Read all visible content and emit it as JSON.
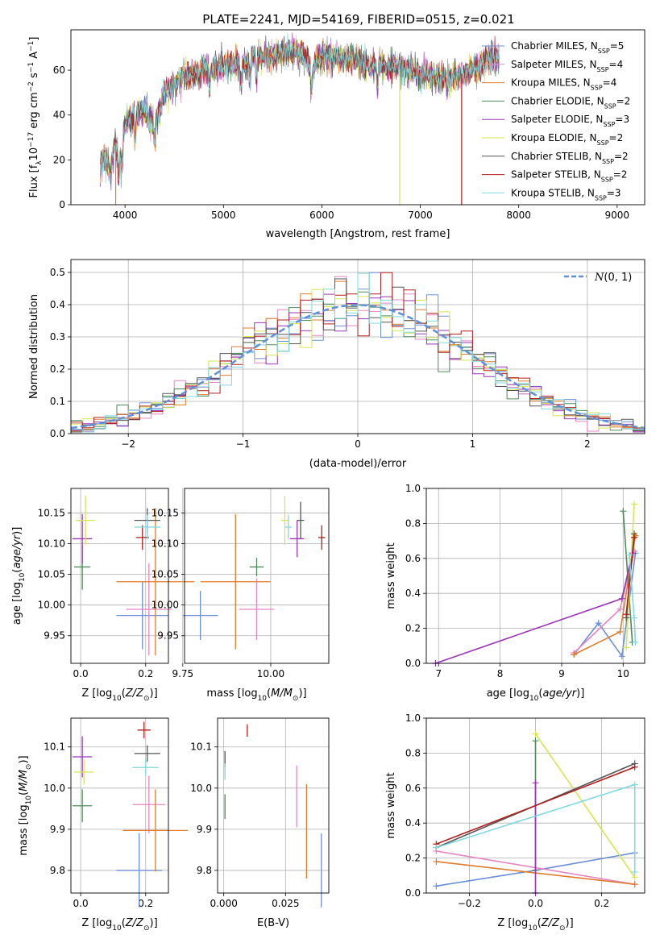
{
  "title": "PLATE=2241, MJD=54169, FIBERID=0515, z=0.021",
  "series_styles": [
    {
      "name": "Chabrier MILES",
      "color": "#6b8fd6"
    },
    {
      "name": "Salpeter MILES",
      "color": "#e585c2"
    },
    {
      "name": "Kroupa MILES",
      "color": "#e07b2c"
    },
    {
      "name": "Chabrier ELODIE",
      "color": "#4e8a5a"
    },
    {
      "name": "Salpeter ELODIE",
      "color": "#9a35b6"
    },
    {
      "name": "Kroupa ELODIE",
      "color": "#d6e552"
    },
    {
      "name": "Chabrier STELIB",
      "color": "#555555"
    },
    {
      "name": "Salpeter STELIB",
      "color": "#b11e1e"
    },
    {
      "name": "Kroupa STELIB",
      "color": "#7fd8de"
    }
  ],
  "chart_data": [
    {
      "id": "spectrum",
      "type": "line",
      "xlabel": "wavelength [Angstrom, rest frame]",
      "ylabel": "Flux [f_λ 10^-17 erg cm^-2 s^-1 A^-1]",
      "xlim": [
        3450,
        9280
      ],
      "ylim": [
        0,
        78
      ],
      "xticks": [
        4000,
        5000,
        6000,
        7000,
        8000,
        9000
      ],
      "yticks": [
        0,
        20,
        40,
        60
      ],
      "legend_position": "top-right",
      "legend": [
        {
          "label": "Chabrier MILES, N",
          "sub": "SSP",
          "val": "=5"
        },
        {
          "label": "Salpeter MILES, N",
          "sub": "SSP",
          "val": "=4"
        },
        {
          "label": "Kroupa MILES, N",
          "sub": "SSP",
          "val": "=4"
        },
        {
          "label": "Chabrier ELODIE, N",
          "sub": "SSP",
          "val": "=2"
        },
        {
          "label": "Salpeter ELODIE, N",
          "sub": "SSP",
          "val": "=3"
        },
        {
          "label": "Kroupa ELODIE, N",
          "sub": "SSP",
          "val": "=2"
        },
        {
          "label": "Chabrier STELIB, N",
          "sub": "SSP",
          "val": "=2"
        },
        {
          "label": "Salpeter STELIB, N",
          "sub": "SSP",
          "val": "=2"
        },
        {
          "label": "Kroupa STELIB, N",
          "sub": "SSP",
          "val": "=3"
        }
      ],
      "continuum": [
        [
          3750,
          18
        ],
        [
          3800,
          22
        ],
        [
          3850,
          14
        ],
        [
          3900,
          28
        ],
        [
          3950,
          20
        ],
        [
          4000,
          36
        ],
        [
          4100,
          40
        ],
        [
          4200,
          42
        ],
        [
          4300,
          36
        ],
        [
          4400,
          50
        ],
        [
          4500,
          54
        ],
        [
          4600,
          58
        ],
        [
          4700,
          58
        ],
        [
          4800,
          60
        ],
        [
          4900,
          60
        ],
        [
          5000,
          62
        ],
        [
          5100,
          64
        ],
        [
          5200,
          62
        ],
        [
          5300,
          66
        ],
        [
          5400,
          66
        ],
        [
          5500,
          66
        ],
        [
          5600,
          68
        ],
        [
          5700,
          68
        ],
        [
          5800,
          68
        ],
        [
          5900,
          60
        ],
        [
          6000,
          67
        ],
        [
          6100,
          66
        ],
        [
          6200,
          66
        ],
        [
          6300,
          65
        ],
        [
          6400,
          64
        ],
        [
          6500,
          62
        ],
        [
          6600,
          62
        ],
        [
          6700,
          62
        ],
        [
          6800,
          60
        ],
        [
          6900,
          60
        ],
        [
          7000,
          58
        ],
        [
          7100,
          58
        ],
        [
          7200,
          56
        ],
        [
          7300,
          56
        ],
        [
          7400,
          58
        ],
        [
          7500,
          60
        ],
        [
          7600,
          62
        ],
        [
          7700,
          66
        ],
        [
          7800,
          66
        ]
      ],
      "dropouts": [
        {
          "x": 3905,
          "color": "#e07b2c"
        },
        {
          "x": 6790,
          "color": "#d6e552"
        },
        {
          "x": 7420,
          "color": "#b11e1e"
        }
      ]
    },
    {
      "id": "residuals",
      "type": "histogram",
      "xlabel": "(data-model)/error",
      "ylabel": "Normed distribution",
      "xlim": [
        -2.5,
        2.5
      ],
      "ylim": [
        0,
        0.54
      ],
      "xticks": [
        -2,
        -1,
        0,
        1,
        2
      ],
      "yticks": [
        0.0,
        0.1,
        0.2,
        0.3,
        0.4,
        0.5
      ],
      "bin_width": 0.1,
      "legend_position": "top-right",
      "legend": "N(0,1)",
      "gaussian_color": "#5f8fd6"
    },
    {
      "id": "age-vs-Z",
      "type": "scatter",
      "xlabel": "Z [log10(Z/Z⊙)]",
      "ylabel": "age  [log10(age/yr)]",
      "xlim": [
        -0.03,
        0.27
      ],
      "ylim": [
        9.905,
        10.19
      ],
      "xticks": [
        0.0,
        0.2
      ],
      "yticks": [
        9.95,
        10.0,
        10.05,
        10.1,
        10.15
      ],
      "points": [
        {
          "x": 0.19,
          "y": 9.983,
          "xerr": 0.08,
          "yerr": 0.055,
          "color": "#6b8fd6"
        },
        {
          "x": 0.21,
          "y": 9.993,
          "xerr": 0.07,
          "yerr": 0.075,
          "color": "#e585c2"
        },
        {
          "x": 0.23,
          "y": 10.038,
          "xerr": 0.12,
          "yerr": 0.12,
          "color": "#e07b2c"
        },
        {
          "x": 0.005,
          "y": 10.062,
          "xerr": 0.025,
          "yerr": 0.037,
          "color": "#4e8a5a"
        },
        {
          "x": 0.005,
          "y": 10.108,
          "xerr": 0.03,
          "yerr": 0.04,
          "color": "#9a35b6"
        },
        {
          "x": 0.015,
          "y": 10.138,
          "xerr": 0.03,
          "yerr": 0.04,
          "color": "#d6e552"
        },
        {
          "x": 0.205,
          "y": 10.138,
          "xerr": 0.04,
          "yerr": 0.02,
          "color": "#555555"
        },
        {
          "x": 0.19,
          "y": 10.11,
          "xerr": 0.02,
          "yerr": 0.02,
          "color": "#b11e1e"
        },
        {
          "x": 0.205,
          "y": 10.127,
          "xerr": 0.04,
          "yerr": 0.02,
          "color": "#7fd8de"
        }
      ]
    },
    {
      "id": "age-vs-mass",
      "type": "scatter",
      "xlabel": "mass [log10(M/M⊙)]",
      "ylabel": "",
      "xlim": [
        9.755,
        10.165
      ],
      "ylim": [
        9.905,
        10.19
      ],
      "xticks": [
        9.75,
        10.0
      ],
      "yticks": [
        9.95,
        10.0,
        10.05,
        10.1,
        10.15
      ],
      "points": [
        {
          "x": 9.8,
          "y": 9.983,
          "xerr": 0.05,
          "yerr": 0.04,
          "color": "#6b8fd6"
        },
        {
          "x": 9.96,
          "y": 9.993,
          "xerr": 0.05,
          "yerr": 0.05,
          "color": "#e585c2"
        },
        {
          "x": 9.9,
          "y": 10.038,
          "xerr": 0.1,
          "yerr": 0.11,
          "color": "#e07b2c"
        },
        {
          "x": 9.96,
          "y": 10.062,
          "xerr": 0.02,
          "yerr": 0.015,
          "color": "#4e8a5a"
        },
        {
          "x": 10.075,
          "y": 10.108,
          "xerr": 0.02,
          "yerr": 0.03,
          "color": "#9a35b6"
        },
        {
          "x": 10.04,
          "y": 10.138,
          "xerr": 0.01,
          "yerr": 0.04,
          "color": "#d6e552"
        },
        {
          "x": 10.085,
          "y": 10.138,
          "xerr": 0.01,
          "yerr": 0.03,
          "color": "#555555"
        },
        {
          "x": 10.145,
          "y": 10.11,
          "xerr": 0.01,
          "yerr": 0.02,
          "color": "#b11e1e"
        },
        {
          "x": 10.05,
          "y": 10.127,
          "xerr": 0.01,
          "yerr": 0.02,
          "color": "#7fd8de"
        }
      ]
    },
    {
      "id": "weight-vs-age",
      "type": "line",
      "xlabel": "age  [log10(age/yr)]",
      "ylabel": "mass weight",
      "xlim": [
        6.8,
        10.35
      ],
      "ylim": [
        0,
        1.0
      ],
      "xticks": [
        7,
        8,
        9,
        10
      ],
      "yticks": [
        0.0,
        0.2,
        0.4,
        0.6,
        0.8,
        1.0
      ],
      "series": [
        {
          "name": "Chabrier MILES",
          "points": [
            [
              9.2,
              0.05
            ],
            [
              9.6,
              0.23
            ],
            [
              9.98,
              0.04
            ],
            [
              10.2,
              0.63
            ]
          ]
        },
        {
          "name": "Salpeter MILES",
          "points": [
            [
              9.2,
              0.06
            ],
            [
              9.95,
              0.31
            ],
            [
              10.18,
              0.64
            ]
          ]
        },
        {
          "name": "Kroupa MILES",
          "points": [
            [
              9.2,
              0.05
            ],
            [
              9.95,
              0.18
            ],
            [
              10.2,
              0.73
            ]
          ]
        },
        {
          "name": "Chabrier ELODIE",
          "points": [
            [
              10.0,
              0.87
            ],
            [
              10.15,
              0.12
            ]
          ]
        },
        {
          "name": "Salpeter ELODIE",
          "points": [
            [
              6.95,
              0.0
            ],
            [
              9.98,
              0.37
            ],
            [
              10.15,
              0.63
            ]
          ]
        },
        {
          "name": "Kroupa ELODIE",
          "points": [
            [
              10.05,
              0.09
            ],
            [
              10.18,
              0.91
            ]
          ]
        },
        {
          "name": "Chabrier STELIB",
          "points": [
            [
              10.05,
              0.26
            ],
            [
              10.18,
              0.74
            ]
          ]
        },
        {
          "name": "Salpeter STELIB",
          "points": [
            [
              10.05,
              0.28
            ],
            [
              10.18,
              0.72
            ]
          ]
        },
        {
          "name": "Kroupa STELIB",
          "points": [
            [
              10.1,
              0.62
            ],
            [
              10.18,
              0.26
            ],
            [
              10.2,
              0.12
            ]
          ]
        }
      ]
    },
    {
      "id": "mass-vs-Z",
      "type": "scatter",
      "xlabel": "Z [log10(Z/Z⊙)]",
      "ylabel": "mass [log10(M/M⊙)]",
      "xlim": [
        -0.03,
        0.27
      ],
      "ylim": [
        9.745,
        10.17
      ],
      "xticks": [
        0.0,
        0.2
      ],
      "yticks": [
        9.8,
        9.9,
        10.0,
        10.1
      ],
      "points": [
        {
          "x": 0.18,
          "y": 9.8,
          "xerr": 0.07,
          "yerr": 0.09,
          "color": "#6b8fd6"
        },
        {
          "x": 0.21,
          "y": 9.96,
          "xerr": 0.05,
          "yerr": 0.07,
          "color": "#e585c2"
        },
        {
          "x": 0.23,
          "y": 9.897,
          "xerr": 0.1,
          "yerr": 0.1,
          "color": "#e07b2c"
        },
        {
          "x": 0.005,
          "y": 9.957,
          "xerr": 0.03,
          "yerr": 0.04,
          "color": "#4e8a5a"
        },
        {
          "x": 0.005,
          "y": 10.076,
          "xerr": 0.03,
          "yerr": 0.05,
          "color": "#9a35b6"
        },
        {
          "x": 0.01,
          "y": 10.039,
          "xerr": 0.03,
          "yerr": 0.03,
          "color": "#d6e552"
        },
        {
          "x": 0.205,
          "y": 10.084,
          "xerr": 0.04,
          "yerr": 0.02,
          "color": "#555555"
        },
        {
          "x": 0.195,
          "y": 10.141,
          "xerr": 0.02,
          "yerr": 0.02,
          "color": "#b11e1e"
        },
        {
          "x": 0.2,
          "y": 10.05,
          "xerr": 0.04,
          "yerr": 0.02,
          "color": "#7fd8de"
        }
      ]
    },
    {
      "id": "mass-vs-EBV",
      "type": "scatter",
      "xlabel": "E(B-V)",
      "ylabel": "",
      "xlim": [
        -0.0025,
        0.0425
      ],
      "ylim": [
        9.745,
        10.17
      ],
      "xticks": [
        0.0,
        0.025
      ],
      "yticks": [
        9.8,
        9.9,
        10.0,
        10.1
      ],
      "points": [
        {
          "x": 0.0395,
          "y": 9.8,
          "xerr": 0,
          "yerr": 0.09,
          "color": "#6b8fd6"
        },
        {
          "x": 0.0295,
          "y": 9.98,
          "xerr": 0,
          "yerr": 0.075,
          "color": "#e585c2"
        },
        {
          "x": 0.0335,
          "y": 9.895,
          "xerr": 0,
          "yerr": 0.115,
          "color": "#e07b2c"
        },
        {
          "x": 0.0005,
          "y": 9.955,
          "xerr": 0,
          "yerr": 0.03,
          "color": "#4e8a5a"
        },
        {
          "x": 0.0005,
          "y": 10.07,
          "xerr": 0,
          "yerr": 0.02,
          "color": "#555555"
        },
        {
          "x": 0.0095,
          "y": 10.14,
          "xerr": 0,
          "yerr": 0.015,
          "color": "#b11e1e"
        },
        {
          "x": 0.0005,
          "y": 10.04,
          "xerr": 0,
          "yerr": 0.02,
          "color": "#7fd8de"
        }
      ]
    },
    {
      "id": "weight-vs-Z",
      "type": "line",
      "xlabel": "Z [log10(Z/Z⊙)]",
      "ylabel": "mass weight",
      "xlim": [
        -0.33,
        0.33
      ],
      "ylim": [
        0,
        1.0
      ],
      "xticks": [
        -0.2,
        0.0,
        0.2
      ],
      "yticks": [
        0.0,
        0.2,
        0.4,
        0.6,
        0.8,
        1.0
      ],
      "series": [
        {
          "name": "Chabrier MILES",
          "points": [
            [
              -0.3,
              0.04
            ],
            [
              0.0,
              0.13
            ],
            [
              0.3,
              0.23
            ]
          ]
        },
        {
          "name": "Salpeter MILES",
          "points": [
            [
              -0.3,
              0.24
            ],
            [
              0.3,
              0.05
            ]
          ]
        },
        {
          "name": "Kroupa MILES",
          "points": [
            [
              -0.3,
              0.18
            ],
            [
              0.3,
              0.05
            ]
          ]
        },
        {
          "name": "Chabrier ELODIE",
          "points": [
            [
              0.0,
              0.87
            ],
            [
              0.0,
              0.13
            ]
          ]
        },
        {
          "name": "Salpeter ELODIE",
          "points": [
            [
              0.0,
              0.63
            ],
            [
              0.0,
              0.0
            ]
          ]
        },
        {
          "name": "Kroupa ELODIE",
          "points": [
            [
              0.0,
              0.91
            ],
            [
              0.3,
              0.09
            ]
          ]
        },
        {
          "name": "Chabrier STELIB",
          "points": [
            [
              -0.3,
              0.26
            ],
            [
              0.3,
              0.74
            ]
          ]
        },
        {
          "name": "Salpeter STELIB",
          "points": [
            [
              -0.3,
              0.28
            ],
            [
              0.3,
              0.72
            ]
          ]
        },
        {
          "name": "Kroupa STELIB",
          "points": [
            [
              -0.3,
              0.26
            ],
            [
              0.3,
              0.62
            ],
            [
              0.3,
              0.12
            ]
          ]
        }
      ]
    }
  ]
}
